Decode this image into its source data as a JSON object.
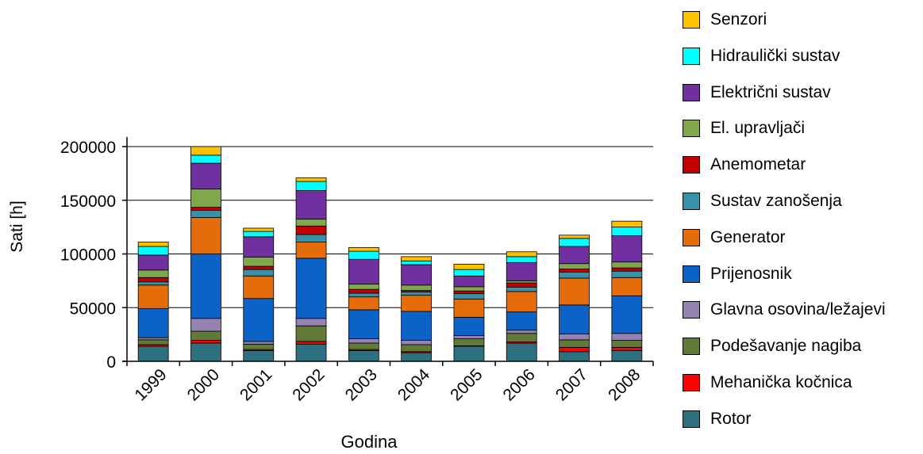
{
  "chart_data": {
    "type": "bar",
    "stacked": true,
    "xlabel": "Godina",
    "ylabel": "Sati [h]",
    "ylim": [
      0,
      200000
    ],
    "yticks": [
      "0",
      "50000",
      "100000",
      "150000",
      "200000"
    ],
    "ytick_values": [
      0,
      50000,
      100000,
      150000,
      200000
    ],
    "grid": "horizontal",
    "legend_position": "right",
    "categories": [
      "1999",
      "2000",
      "2001",
      "2002",
      "2003",
      "2004",
      "2005",
      "2006",
      "2007",
      "2008"
    ],
    "series": [
      {
        "name": "Rotor",
        "color": "#2e7080",
        "values": [
          14000,
          17000,
          10000,
          16000,
          10000,
          8000,
          14000,
          17000,
          9000,
          10000
        ]
      },
      {
        "name": "Mehanička kočnica",
        "color": "#ff0000",
        "values": [
          1500,
          2500,
          1000,
          2500,
          1000,
          1000,
          500,
          1000,
          4000,
          3000
        ]
      },
      {
        "name": "Podešavanje nagiba",
        "color": "#627a38",
        "values": [
          4500,
          8500,
          5000,
          14500,
          6000,
          6500,
          6500,
          8000,
          7000,
          6500
        ]
      },
      {
        "name": "Glavna osovina/ležajevi",
        "color": "#9482b3",
        "values": [
          2000,
          12000,
          2500,
          7000,
          4000,
          4000,
          3000,
          3000,
          5500,
          6500
        ]
      },
      {
        "name": "Prijenosnik",
        "color": "#0b62c7",
        "values": [
          27000,
          60000,
          40000,
          56000,
          27000,
          27000,
          17000,
          17000,
          27000,
          35000
        ]
      },
      {
        "name": "Generator",
        "color": "#e46c0a",
        "values": [
          22000,
          34000,
          21000,
          15000,
          12000,
          15000,
          17000,
          19000,
          25000,
          17000
        ]
      },
      {
        "name": "Sustav zanošenja",
        "color": "#3592a9",
        "values": [
          3000,
          6500,
          6000,
          7000,
          3500,
          3000,
          5000,
          4000,
          5500,
          6000
        ]
      },
      {
        "name": "Anemometar",
        "color": "#c00000",
        "values": [
          4000,
          3000,
          3000,
          8000,
          3500,
          1500,
          2500,
          4000,
          3000,
          3000
        ]
      },
      {
        "name": "El. upravljači",
        "color": "#7fa84a",
        "values": [
          7000,
          17000,
          8500,
          6500,
          5000,
          5000,
          4000,
          2000,
          5000,
          5500
        ]
      },
      {
        "name": "Električni sustav",
        "color": "#7030a0",
        "values": [
          14000,
          24000,
          19000,
          26500,
          23000,
          19000,
          10000,
          17000,
          16000,
          24500
        ]
      },
      {
        "name": "Hidraulički sustav",
        "color": "#00ffff",
        "values": [
          8000,
          7500,
          5000,
          8500,
          7500,
          3500,
          6000,
          5500,
          7500,
          8000
        ]
      },
      {
        "name": "Senzori",
        "color": "#ffc000",
        "values": [
          4000,
          8000,
          3000,
          3500,
          3500,
          4000,
          5000,
          4500,
          3000,
          5500
        ]
      }
    ],
    "legend_order": [
      "Senzori",
      "Hidraulički sustav",
      "Električni sustav",
      "El. upravljači",
      "Anemometar",
      "Sustav zanošenja",
      "Generator",
      "Prijenosnik",
      "Glavna osovina/ležajevi",
      "Podešavanje nagiba",
      "Mehanička kočnica",
      "Rotor"
    ]
  }
}
